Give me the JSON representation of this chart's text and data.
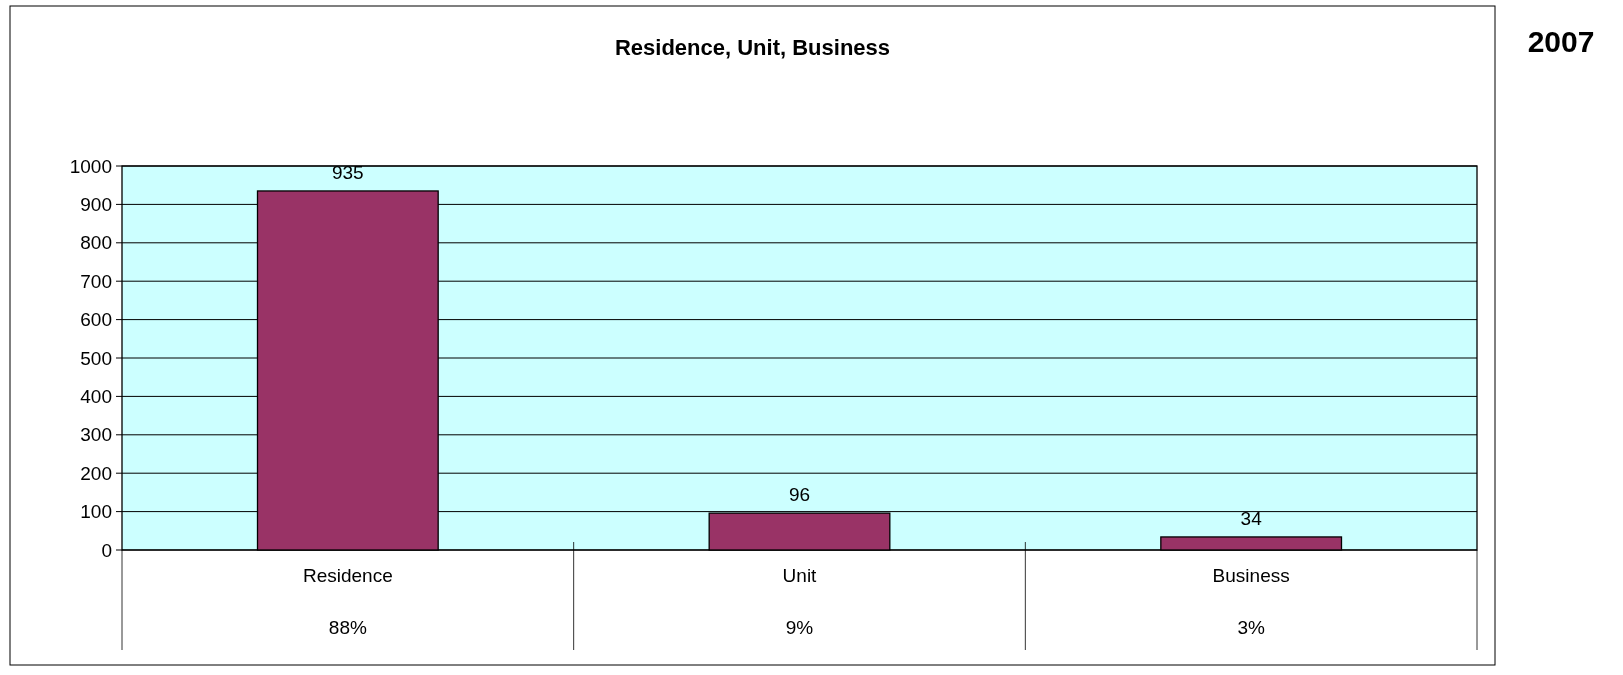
{
  "chart_data": {
    "type": "bar",
    "title": "Residence, Unit, Business",
    "subtitle": "2007",
    "categories": [
      "Residence",
      "Unit",
      "Business"
    ],
    "values": [
      935,
      96,
      34
    ],
    "color": "#993366",
    "ylim": [
      0,
      1000
    ],
    "yticks": [
      0,
      100,
      200,
      300,
      400,
      500,
      600,
      700,
      800,
      900,
      1000
    ],
    "grid": "y",
    "data_labels": true,
    "annotations": [
      "88%",
      "9%",
      "3%"
    ]
  }
}
